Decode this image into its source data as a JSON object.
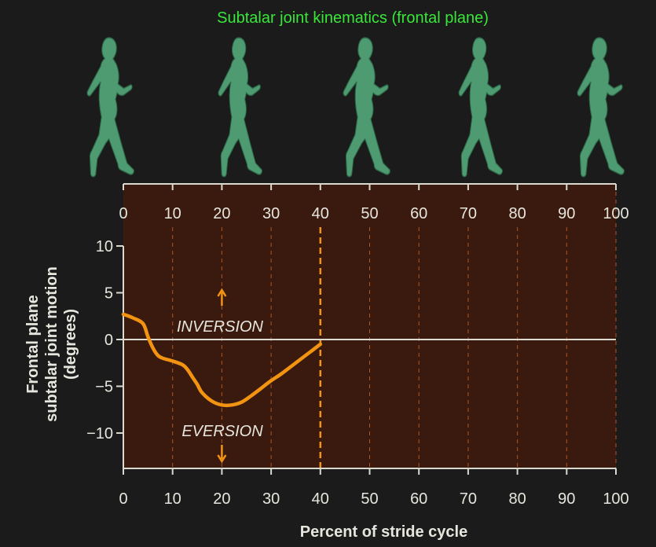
{
  "title": "Subtalar joint kinematics (frontal plane)",
  "ylabel_lines": [
    "Frontal plane",
    "subtalar joint motion",
    "(degrees)"
  ],
  "xlabel": "Percent of stride cycle",
  "annotations": {
    "inversion": "INVERSION",
    "eversion": "EVERSION"
  },
  "colors": {
    "background": "#1b1b1b",
    "plot_fill": "#3a1a0e",
    "title": "#39e639",
    "curve": "#f29312",
    "axis": "#d9d9d0",
    "text": "#e6e6de",
    "grid": "#c0602a",
    "runner": "#4f9b71",
    "runner_outline": "#2c6a48"
  },
  "figures": [
    "runner-icon",
    "runner-icon",
    "runner-icon",
    "runner-icon",
    "runner-icon"
  ],
  "chart_data": {
    "type": "line",
    "title": "Subtalar joint kinematics (frontal plane)",
    "xlabel": "Percent of stride cycle",
    "ylabel": "Frontal plane subtalar joint motion (degrees)",
    "xlim": [
      0,
      100
    ],
    "ylim": [
      -14,
      10
    ],
    "xticks": [
      0,
      10,
      20,
      30,
      40,
      50,
      60,
      70,
      80,
      90,
      100
    ],
    "yticks": [
      10,
      5,
      0,
      -5,
      -10
    ],
    "xtick_labels": [
      "0",
      "10",
      "20",
      "30",
      "40",
      "50",
      "60",
      "70",
      "80",
      "90",
      "100"
    ],
    "ytick_labels": [
      "10",
      "5",
      "0",
      "−5",
      "−10"
    ],
    "grid": "vertical dashed",
    "marker_line_x": 40,
    "series": [
      {
        "x": [
          0,
          2,
          4,
          5,
          6,
          7,
          8,
          10,
          12,
          13,
          14,
          15,
          16,
          18,
          20,
          22,
          24,
          26,
          28,
          30,
          32,
          34,
          36,
          38,
          40
        ],
        "y": [
          2.7,
          2.3,
          1.7,
          0.3,
          -0.9,
          -1.7,
          -2.0,
          -2.3,
          -2.7,
          -3.2,
          -4.0,
          -4.8,
          -5.7,
          -6.6,
          -7.0,
          -7.0,
          -6.7,
          -6.0,
          -5.2,
          -4.4,
          -3.7,
          -2.9,
          -2.1,
          -1.3,
          -0.5
        ]
      }
    ]
  }
}
